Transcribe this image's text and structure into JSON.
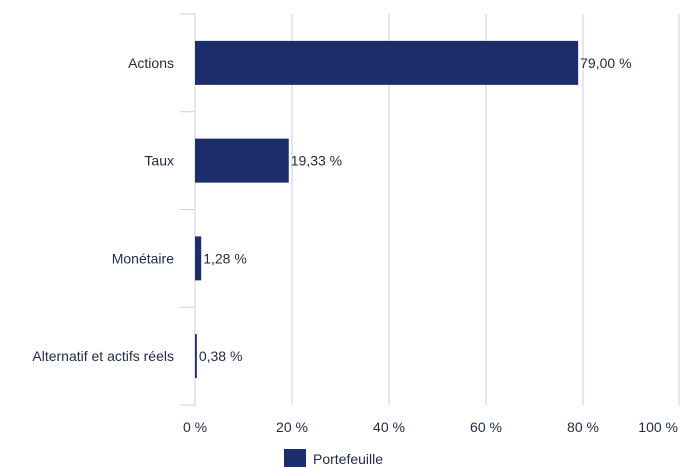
{
  "chart_data": {
    "type": "bar",
    "orientation": "horizontal",
    "categories": [
      "Actions",
      "Taux",
      "Monétaire",
      "Alternatif et actifs réels"
    ],
    "series": [
      {
        "name": "Portefeuille",
        "values": [
          79.0,
          19.33,
          1.28,
          0.38
        ],
        "value_labels": [
          "79,00 %",
          "19,33 %",
          "1,28 %",
          "0,38 %"
        ]
      }
    ],
    "xlim": [
      0,
      100
    ],
    "x_ticks": [
      0,
      20,
      40,
      60,
      80,
      100
    ],
    "x_tick_labels": [
      "0 %",
      "20 %",
      "40 %",
      "60 %",
      "80 %",
      "100 %"
    ],
    "grid": true,
    "legend_position": "bottom",
    "bar_color": "#1b2d6b",
    "grid_color": "#c5d0de",
    "title": "",
    "xlabel": "",
    "ylabel": ""
  }
}
